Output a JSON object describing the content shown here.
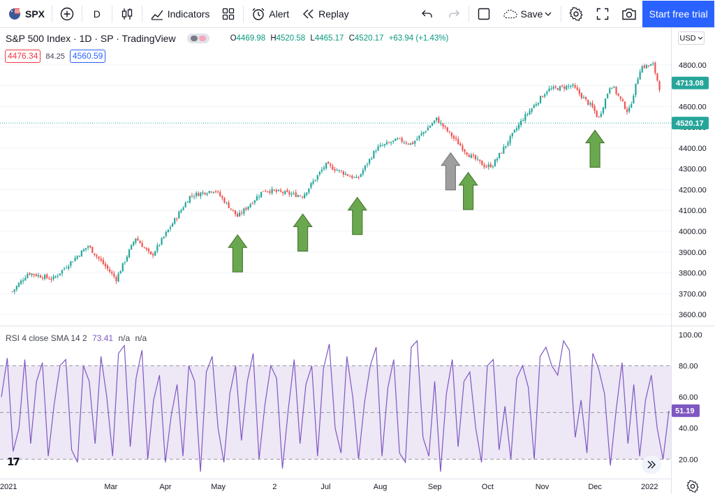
{
  "toolbar": {
    "symbol": "SPX",
    "interval": "D",
    "indicators_label": "Indicators",
    "alert_label": "Alert",
    "replay_label": "Replay",
    "save_label": "Save",
    "trial_label": "Start free trial"
  },
  "legend": {
    "title": "S&P 500 Index · 1D · SP · TradingView",
    "open_label": "O",
    "open": "4469.98",
    "high_label": "H",
    "high": "4520.58",
    "low_label": "L",
    "low": "4465.17",
    "close_label": "C",
    "close": "4520.17",
    "change": "+63.94 (+1.43%)",
    "bid": "4476.34",
    "spread": "84.25",
    "ask": "4560.59",
    "currency": "USD"
  },
  "rsi_legend": {
    "name": "RSI 4 close SMA 14 2",
    "value": "73.41",
    "na1": "n/a",
    "na2": "n/a"
  },
  "colors": {
    "up": "#26a69a",
    "down": "#ef5350",
    "rsi_line": "#7e57c2",
    "rsi_band": "#ede7f6",
    "arrow_green": "#6aa84f",
    "arrow_gray": "#9e9e9e",
    "accent": "#2962ff"
  },
  "icons": [
    "flag-icon",
    "plus-circle-icon",
    "candles-icon",
    "indicators-icon",
    "layout-icon",
    "alert-icon",
    "replay-icon",
    "undo-icon",
    "redo-icon",
    "fullscreen-icon",
    "cloud-icon",
    "chevron-down-icon",
    "gear-icon",
    "expand-icon",
    "camera-icon",
    "tv-logo-icon",
    "double-chevron-right-icon"
  ],
  "chart_data": [
    {
      "type": "candlestick",
      "title": "",
      "ylim": [
        3560,
        4860
      ],
      "y_ticks": [
        "3600.00",
        "3700.00",
        "3800.00",
        "3900.00",
        "4000.00",
        "4100.00",
        "4200.00",
        "4300.00",
        "4400.00",
        "4500.00",
        "4600.00",
        "4700.00",
        "4800.00"
      ],
      "x_labels": [
        "2021",
        "Mar",
        "Apr",
        "May",
        "2",
        "Jul",
        "Aug",
        "Sep",
        "Oct",
        "Nov",
        "Dec",
        "2022"
      ],
      "price_markers": {
        "last": "4713.08",
        "current": "4520.17"
      },
      "series": [
        {
          "x": [
            "2021-01-04",
            "2021-01-13",
            "2021-01-27",
            "2021-02-16",
            "2021-03-04",
            "2021-03-15",
            "2021-03-24",
            "2021-04-15",
            "2021-04-29",
            "2021-05-12",
            "2021-05-27",
            "2021-06-18",
            "2021-07-01",
            "2021-07-19",
            "2021-07-30",
            "2021-08-11",
            "2021-08-19",
            "2021-09-02",
            "2021-09-20",
            "2021-09-30",
            "2021-10-04",
            "2021-10-21",
            "2021-11-04",
            "2021-11-18",
            "2021-11-30",
            "2021-12-03",
            "2021-12-10",
            "2021-12-20",
            "2021-12-27",
            "2022-01-03",
            "2022-01-07"
          ],
          "close": [
            3710,
            3800,
            3770,
            3930,
            3770,
            3970,
            3880,
            4170,
            4200,
            4070,
            4200,
            4170,
            4320,
            4250,
            4400,
            4440,
            4420,
            4540,
            4370,
            4310,
            4320,
            4540,
            4680,
            4700,
            4590,
            4540,
            4710,
            4570,
            4790,
            4800,
            4680
          ]
        }
      ],
      "annotations": [
        {
          "type": "arrow-up",
          "color": "green",
          "x": "2021-05-12"
        },
        {
          "type": "arrow-up",
          "color": "green",
          "x": "2021-06-18"
        },
        {
          "type": "arrow-up",
          "color": "green",
          "x": "2021-07-19"
        },
        {
          "type": "arrow-up",
          "color": "gray",
          "x": "2021-09-10"
        },
        {
          "type": "arrow-up",
          "color": "green",
          "x": "2021-09-20"
        },
        {
          "type": "arrow-up",
          "color": "green",
          "x": "2021-12-01"
        }
      ]
    },
    {
      "type": "line",
      "title": "RSI 4 close SMA 14 2",
      "ylim": [
        8,
        104
      ],
      "y_ticks": [
        "20.00",
        "40.00",
        "60.00",
        "80.00",
        "100.00"
      ],
      "bands": [
        20,
        50,
        80
      ],
      "last_marker": "51.19",
      "series": [
        {
          "name": "RSI",
          "values": [
            60,
            85,
            25,
            40,
            84,
            30,
            70,
            82,
            22,
            55,
            80,
            84,
            26,
            18,
            80,
            70,
            30,
            86,
            60,
            22,
            88,
            93,
            28,
            72,
            90,
            20,
            58,
            74,
            18,
            48,
            68,
            22,
            80,
            70,
            12,
            76,
            86,
            40,
            18,
            62,
            80,
            32,
            70,
            88,
            20,
            55,
            80,
            72,
            14,
            52,
            84,
            30,
            68,
            80,
            22,
            78,
            94,
            40,
            24,
            86,
            60,
            20,
            56,
            80,
            92,
            22,
            66,
            84,
            24,
            18,
            92,
            96,
            34,
            22,
            70,
            12,
            62,
            84,
            28,
            70,
            76,
            40,
            18,
            80,
            84,
            26,
            54,
            20,
            72,
            80,
            66,
            20,
            86,
            92,
            80,
            74,
            96,
            90,
            34,
            58,
            24,
            88,
            78,
            62,
            16,
            52,
            82,
            30,
            68,
            22,
            58,
            74,
            40,
            20,
            51
          ]
        }
      ]
    }
  ]
}
